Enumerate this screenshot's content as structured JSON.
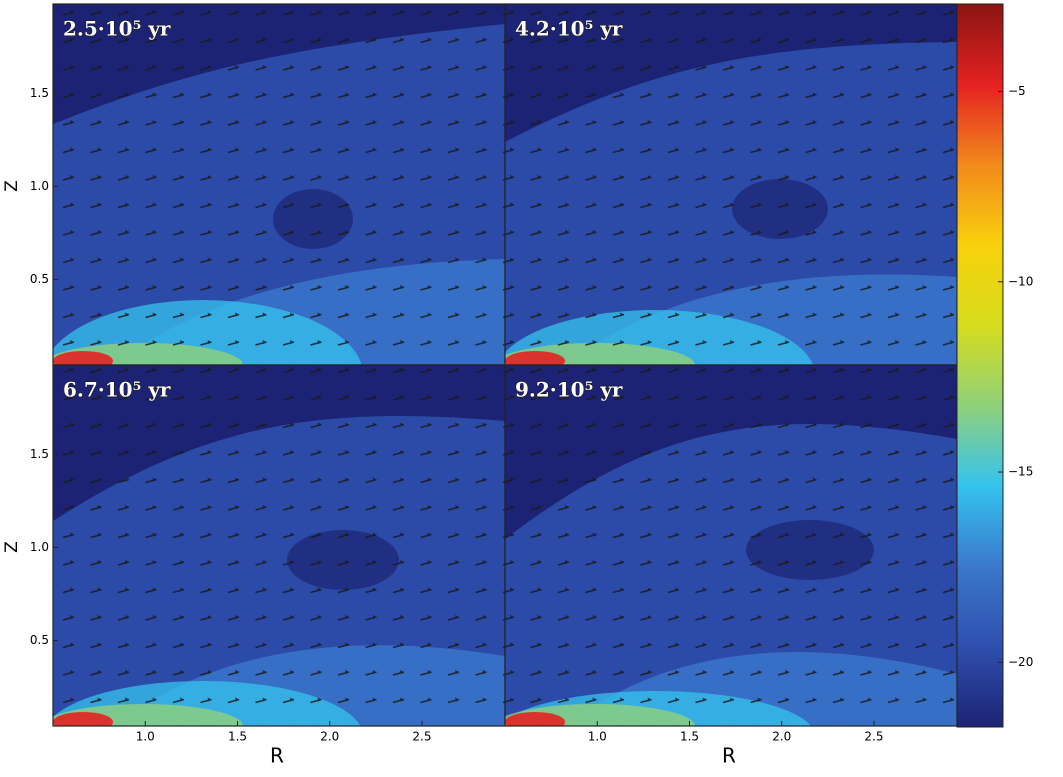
{
  "chart_data": [
    {
      "type": "heatmap",
      "title": "2.5·10⁵ yr",
      "ylabel": "Z",
      "ylim": [
        0.04,
        1.98
      ],
      "yticks": [
        {
          "value": 0.5,
          "label": "0.5"
        },
        {
          "value": 1,
          "label": "1.0"
        },
        {
          "value": 1.5,
          "label": "1.5"
        }
      ]
    },
    {
      "type": "heatmap",
      "title": "4.2·10⁵ yr"
    },
    {
      "type": "heatmap",
      "title": "6.7·10⁵ yr",
      "xlabel": "R",
      "ylabel": "Z",
      "xlim": [
        0.5,
        2.95
      ],
      "ylim": [
        0.04,
        1.98
      ],
      "xticks": [
        {
          "value": 1,
          "label": "1.0"
        },
        {
          "value": 1.5,
          "label": "1.5"
        },
        {
          "value": 2,
          "label": "2.0"
        },
        {
          "value": 2.5,
          "label": "2.5"
        }
      ],
      "yticks": [
        {
          "value": 0.5,
          "label": "0.5"
        },
        {
          "value": 1,
          "label": "1.0"
        },
        {
          "value": 1.5,
          "label": "1.5"
        }
      ]
    },
    {
      "type": "heatmap",
      "title": "9.2·10⁵ yr",
      "xlabel": "R",
      "xlim": [
        0.5,
        2.95
      ],
      "xticks": [
        {
          "value": 1,
          "label": "1.0"
        },
        {
          "value": 1.5,
          "label": "1.5"
        },
        {
          "value": 2,
          "label": "2.0"
        },
        {
          "value": 2.5,
          "label": "2.5"
        }
      ]
    },
    {
      "type": "colorbar",
      "lim": [
        -21.7,
        -2.7
      ],
      "ticks": [
        {
          "value": -5,
          "label": "−5"
        },
        {
          "value": -10,
          "label": "−10"
        },
        {
          "value": -15,
          "label": "−15"
        },
        {
          "value": -20,
          "label": "−20"
        }
      ],
      "colors": [
        "#1c2374",
        "#2f4fae",
        "#3a78cc",
        "#35c3ee",
        "#8fd17a",
        "#d6dc1c",
        "#f8d10c",
        "#f28a1c",
        "#e42121",
        "#8a1512"
      ]
    }
  ]
}
